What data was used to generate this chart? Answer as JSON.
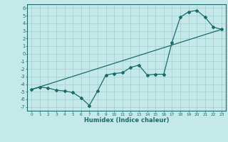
{
  "title": "",
  "xlabel": "Humidex (Indice chaleur)",
  "bg_color": "#c5e8e8",
  "grid_color": "#9ecece",
  "line_color": "#1a6b6b",
  "xlim": [
    -0.5,
    23.5
  ],
  "ylim": [
    -7.5,
    6.5
  ],
  "xticks": [
    0,
    1,
    2,
    3,
    4,
    5,
    6,
    7,
    8,
    9,
    10,
    11,
    12,
    13,
    14,
    15,
    16,
    17,
    18,
    19,
    20,
    21,
    22,
    23
  ],
  "yticks": [
    -7,
    -6,
    -5,
    -4,
    -3,
    -2,
    -1,
    0,
    1,
    2,
    3,
    4,
    5,
    6
  ],
  "zigzag_x": [
    0,
    1,
    2,
    3,
    4,
    5,
    6,
    7,
    8,
    9,
    10,
    11,
    12,
    13,
    14,
    15,
    16,
    17,
    18,
    19,
    20,
    21,
    22,
    23
  ],
  "zigzag_y": [
    -4.7,
    -4.4,
    -4.5,
    -4.8,
    -4.9,
    -5.1,
    -5.8,
    -6.8,
    -4.9,
    -2.8,
    -2.6,
    -2.5,
    -1.8,
    -1.5,
    -2.8,
    -2.7,
    -2.7,
    1.5,
    4.8,
    5.5,
    5.7,
    4.8,
    3.5,
    3.2
  ],
  "line2_x": [
    0,
    23
  ],
  "line2_y": [
    -4.7,
    3.2
  ]
}
